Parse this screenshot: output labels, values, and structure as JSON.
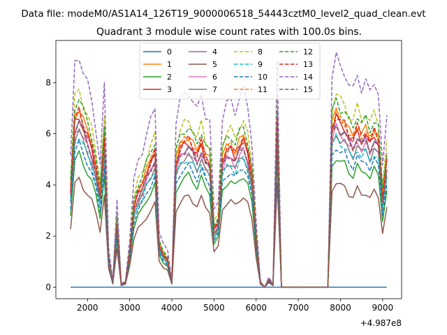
{
  "chart_data": {
    "type": "line",
    "suptitle": "Data file: modeM0/AS1A14_126T19_9000006518_54443cztM0_level2_quad_clean.evt",
    "title": "Quadrant 3 module wise count rates with 100.0s bins.",
    "xlabel": "",
    "ylabel": "",
    "x_offset_label": "+4.987e8",
    "xlim": [
      1250,
      9450
    ],
    "ylim": [
      -0.45,
      9.65
    ],
    "xticks": [
      2000,
      3000,
      4000,
      5000,
      6000,
      7000,
      8000,
      9000
    ],
    "xtick_labels": [
      "2000",
      "3000",
      "4000",
      "5000",
      "6000",
      "7000",
      "8000",
      "9000"
    ],
    "yticks": [
      0,
      2,
      4,
      6,
      8
    ],
    "ytick_labels": [
      "0",
      "2",
      "4",
      "6",
      "8"
    ],
    "legend_location": "upper-center",
    "x": [
      1600,
      1700,
      1800,
      1900,
      2000,
      2100,
      2200,
      2300,
      2400,
      2500,
      2600,
      2700,
      2800,
      2900,
      3000,
      3100,
      3200,
      3300,
      3400,
      3500,
      3600,
      3700,
      3800,
      3900,
      4000,
      4100,
      4200,
      4300,
      4400,
      4500,
      4600,
      4700,
      4800,
      4900,
      5000,
      5100,
      5200,
      5300,
      5400,
      5500,
      5600,
      5700,
      5800,
      5900,
      6000,
      6100,
      6200,
      6300,
      6400,
      6500,
      6600,
      6700,
      6800,
      6900,
      7000,
      7100,
      7200,
      7300,
      7400,
      7500,
      7600,
      7700,
      7800,
      7900,
      8000,
      8100,
      8200,
      8300,
      8400,
      8500,
      8600,
      8700,
      8800,
      8900,
      9000,
      9100
    ],
    "series": [
      {
        "name": "0",
        "color": "#1f77b4",
        "dash": "solid",
        "scale": 0.0,
        "jitter": 0.0
      },
      {
        "name": "1",
        "color": "#ff7f0e",
        "dash": "solid",
        "scale": 1.0,
        "jitter": 0.15
      },
      {
        "name": "2",
        "color": "#2ca02c",
        "dash": "solid",
        "scale": 0.74,
        "jitter": 0.12
      },
      {
        "name": "3",
        "color": "#d62728",
        "dash": "solid",
        "scale": 0.96,
        "jitter": 0.15
      },
      {
        "name": "4",
        "color": "#9467bd",
        "dash": "solid",
        "scale": 0.93,
        "jitter": 0.14
      },
      {
        "name": "5",
        "color": "#8c564b",
        "dash": "solid",
        "scale": 0.6,
        "jitter": 0.1
      },
      {
        "name": "6",
        "color": "#e377c2",
        "dash": "solid",
        "scale": 0.9,
        "jitter": 0.14
      },
      {
        "name": "7",
        "color": "#7f7f7f",
        "dash": "solid",
        "scale": 0.87,
        "jitter": 0.13
      },
      {
        "name": "8",
        "color": "#bcbd22",
        "dash": "dashed",
        "scale": 1.1,
        "jitter": 0.16
      },
      {
        "name": "9",
        "color": "#17becf",
        "dash": "dashed",
        "scale": 0.85,
        "jitter": 0.13
      },
      {
        "name": "10",
        "color": "#1f77b4",
        "dash": "dashed",
        "scale": 0.8,
        "jitter": 0.12
      },
      {
        "name": "11",
        "color": "#ff7f0e",
        "dash": "dashed",
        "scale": 0.99,
        "jitter": 0.15
      },
      {
        "name": "12",
        "color": "#2ca02c",
        "dash": "dashed",
        "scale": 1.06,
        "jitter": 0.16
      },
      {
        "name": "13",
        "color": "#d62728",
        "dash": "dashed",
        "scale": 0.98,
        "jitter": 0.15
      },
      {
        "name": "14",
        "color": "#9467bd",
        "dash": "dashed",
        "scale": 1.3,
        "jitter": 0.18
      },
      {
        "name": "15",
        "color": "#8c564b",
        "dash": "dashed",
        "scale": 0.92,
        "jitter": 0.13
      }
    ],
    "base_profile": [
      3.9,
      6.7,
      7.0,
      6.5,
      6.1,
      5.6,
      4.8,
      3.7,
      6.0,
      1.2,
      0.2,
      2.6,
      0.1,
      0.2,
      1.4,
      3.2,
      3.8,
      4.1,
      4.6,
      5.0,
      5.4,
      1.7,
      1.3,
      1.1,
      0.2,
      5.0,
      5.6,
      5.8,
      5.9,
      5.6,
      5.3,
      5.8,
      5.2,
      5.0,
      2.3,
      2.6,
      5.1,
      5.5,
      5.6,
      5.3,
      5.7,
      5.9,
      5.4,
      4.4,
      2.0,
      0.2,
      0.0,
      0.3,
      0.1,
      6.7,
      0.0,
      0.0,
      0.0,
      0.0,
      0.0,
      0.0,
      0.0,
      0.0,
      0.0,
      0.0,
      0.0,
      0.0,
      6.4,
      6.9,
      6.6,
      6.5,
      6.1,
      5.9,
      6.4,
      6.0,
      6.2,
      5.8,
      6.2,
      5.9,
      3.6,
      5.1
    ]
  }
}
